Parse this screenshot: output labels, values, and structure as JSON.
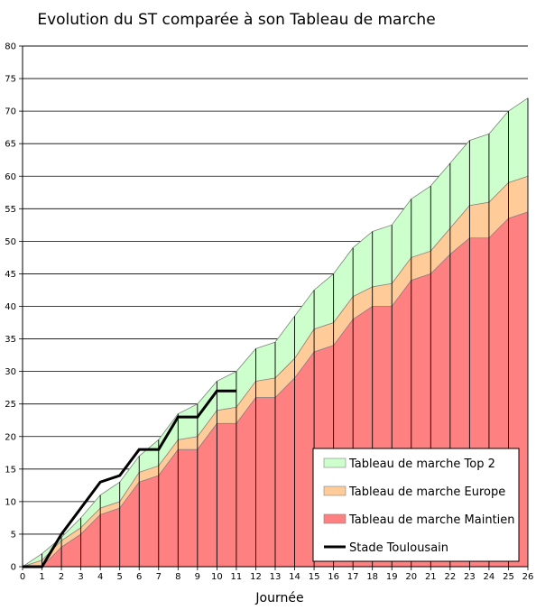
{
  "chart_data": {
    "type": "area",
    "title": "Evolution du ST comparée à son Tableau de marche",
    "xlabel": "Journée",
    "ylabel": "",
    "x": [
      0,
      1,
      2,
      3,
      4,
      5,
      6,
      7,
      8,
      9,
      10,
      11,
      12,
      13,
      14,
      15,
      16,
      17,
      18,
      19,
      20,
      21,
      22,
      23,
      24,
      25,
      26
    ],
    "xlim": [
      0,
      26
    ],
    "ylim": [
      0,
      80
    ],
    "yticks": [
      0,
      5,
      10,
      15,
      20,
      25,
      30,
      35,
      40,
      45,
      50,
      55,
      60,
      65,
      70,
      75,
      80
    ],
    "grid": "horizontal",
    "legend_position": "bottom-right",
    "series": [
      {
        "name": "Tableau de marche Top 2",
        "kind": "area",
        "color": "#ccffcc",
        "values": [
          0,
          2,
          4.5,
          7.5,
          11,
          13,
          17,
          19.5,
          23.5,
          25,
          28.5,
          30,
          33.5,
          34.5,
          38.5,
          42.5,
          45,
          49,
          51.5,
          52.5,
          56.5,
          58.5,
          62,
          65.5,
          66.5,
          70,
          72
        ]
      },
      {
        "name": "Tableau de marche Europe",
        "kind": "area",
        "color": "#ffcc99",
        "values": [
          0,
          1,
          4,
          6,
          9,
          10,
          14.5,
          15.5,
          19.5,
          20,
          24,
          24.5,
          28.5,
          29,
          32,
          36.5,
          37.5,
          41.5,
          43,
          43.5,
          47.5,
          48.5,
          52,
          55.5,
          56,
          59,
          60
        ]
      },
      {
        "name": "Tableau de marche Maintien",
        "kind": "area",
        "color": "#ff8080",
        "values": [
          0,
          0,
          3,
          5,
          8,
          9,
          13,
          14,
          18,
          18,
          22,
          22,
          26,
          26,
          29,
          33,
          34,
          38,
          40,
          40,
          44,
          45,
          48,
          50.5,
          50.5,
          53.5,
          54.5
        ]
      },
      {
        "name": "Stade Toulousain",
        "kind": "line",
        "color": "#000000",
        "x": [
          0,
          1,
          2,
          3,
          4,
          5,
          6,
          7,
          8,
          9,
          10,
          11
        ],
        "values": [
          0,
          0,
          5,
          9,
          13,
          14,
          18,
          18,
          23,
          23,
          27,
          27
        ]
      }
    ]
  }
}
